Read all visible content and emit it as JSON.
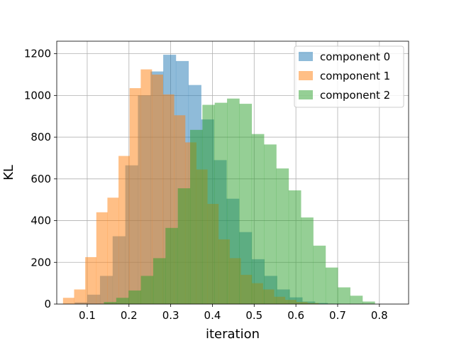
{
  "chart_data": {
    "type": "histogram",
    "title": "",
    "xlabel": "iteration",
    "ylabel": "KL",
    "xlim": [
      0.027,
      0.87
    ],
    "ylim": [
      0,
      1260
    ],
    "xticks": [
      0.1,
      0.2,
      0.3,
      0.4,
      0.5,
      0.6,
      0.7,
      0.8
    ],
    "yticks": [
      0,
      200,
      400,
      600,
      800,
      1000,
      1200
    ],
    "grid": true,
    "legend_position": "top-right",
    "series": [
      {
        "name": "component 0",
        "color": "#1f77b4",
        "alpha": 0.5,
        "bin_start": 0.07,
        "bin_width": 0.0303,
        "counts": [
          8,
          45,
          135,
          325,
          665,
          1000,
          1115,
          1195,
          1165,
          1050,
          885,
          690,
          505,
          345,
          215,
          135,
          70,
          32,
          12,
          5,
          2
        ]
      },
      {
        "name": "component 1",
        "color": "#ff7f0e",
        "alpha": 0.5,
        "bin_start": 0.042,
        "bin_width": 0.0266,
        "counts": [
          30,
          70,
          225,
          440,
          510,
          710,
          1035,
          1125,
          1100,
          1005,
          905,
          775,
          645,
          480,
          310,
          220,
          140,
          100,
          70,
          35,
          20,
          10,
          5
        ]
      },
      {
        "name": "component 2",
        "color": "#2ca02c",
        "alpha": 0.5,
        "bin_start": 0.14,
        "bin_width": 0.0295,
        "counts": [
          10,
          30,
          65,
          135,
          220,
          365,
          555,
          835,
          955,
          965,
          985,
          960,
          815,
          765,
          650,
          545,
          415,
          280,
          175,
          80,
          40,
          12
        ]
      }
    ]
  }
}
